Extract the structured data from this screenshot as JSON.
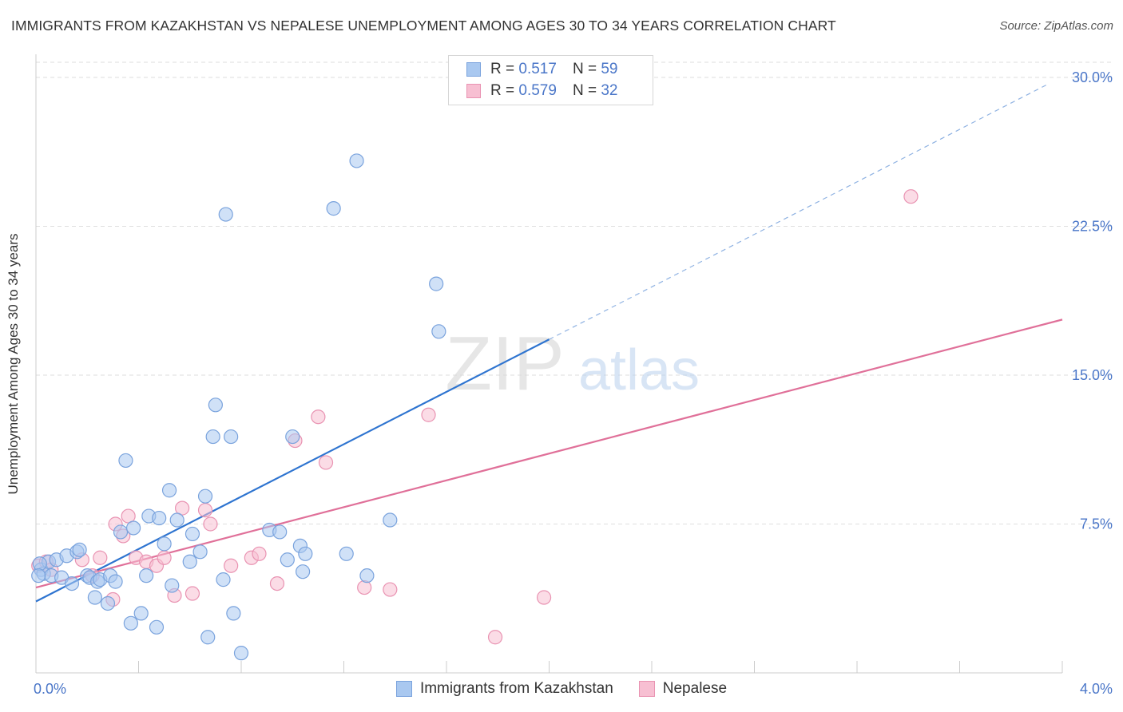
{
  "title": "IMMIGRANTS FROM KAZAKHSTAN VS NEPALESE UNEMPLOYMENT AMONG AGES 30 TO 34 YEARS CORRELATION CHART",
  "source": "Source: ZipAtlas.com",
  "watermark": {
    "zip": "ZIP",
    "atlas": "atlas"
  },
  "legend": {
    "r_label": "R =",
    "n_label": "N =",
    "rows": [
      {
        "r": "0.517",
        "n": "59",
        "color": "#a9c8f0",
        "border": "#7aa3dd"
      },
      {
        "r": "0.579",
        "n": "32",
        "color": "#f7bfd2",
        "border": "#e993b2"
      }
    ]
  },
  "chart_data": {
    "type": "scatter",
    "xlabel": "",
    "ylabel": "Unemployment Among Ages 30 to 34 years",
    "xlim": [
      0,
      4.0
    ],
    "ylim": [
      0,
      31.0
    ],
    "x_tick_labels": [
      {
        "value": 0.0,
        "label": "0.0%"
      },
      {
        "value": 4.0,
        "label": "4.0%"
      }
    ],
    "y_tick_labels": [
      {
        "value": 7.5,
        "label": "7.5%"
      },
      {
        "value": 15.0,
        "label": "15.0%"
      },
      {
        "value": 22.5,
        "label": "22.5%"
      },
      {
        "value": 30.0,
        "label": "30.0%"
      }
    ],
    "grid": "horizontal dashed",
    "legend_position": "top-center",
    "series": [
      {
        "name": "Immigrants from Kazakhstan",
        "color": "#a9c8f0",
        "stroke": "#7aa3dd",
        "line_color": "#2e74d0",
        "trend": {
          "x0": 0.0,
          "y0": 3.6,
          "x1": 2.0,
          "y1": 16.8,
          "x_ext": 3.95,
          "y_ext": 29.7
        },
        "points": [
          [
            0.02,
            5.2
          ],
          [
            0.03,
            5.0
          ],
          [
            0.05,
            5.6
          ],
          [
            0.06,
            4.9
          ],
          [
            0.08,
            5.7
          ],
          [
            0.1,
            4.8
          ],
          [
            0.12,
            5.9
          ],
          [
            0.14,
            4.5
          ],
          [
            0.16,
            6.1
          ],
          [
            0.17,
            6.2
          ],
          [
            0.2,
            4.9
          ],
          [
            0.21,
            4.8
          ],
          [
            0.23,
            3.8
          ],
          [
            0.24,
            4.6
          ],
          [
            0.25,
            4.7
          ],
          [
            0.28,
            3.5
          ],
          [
            0.29,
            4.9
          ],
          [
            0.31,
            4.6
          ],
          [
            0.33,
            7.1
          ],
          [
            0.35,
            10.7
          ],
          [
            0.37,
            2.5
          ],
          [
            0.38,
            7.3
          ],
          [
            0.41,
            3.0
          ],
          [
            0.43,
            4.9
          ],
          [
            0.44,
            7.9
          ],
          [
            0.47,
            2.3
          ],
          [
            0.48,
            7.8
          ],
          [
            0.5,
            6.5
          ],
          [
            0.52,
            9.2
          ],
          [
            0.53,
            4.4
          ],
          [
            0.55,
            7.7
          ],
          [
            0.6,
            5.6
          ],
          [
            0.61,
            7.0
          ],
          [
            0.64,
            6.1
          ],
          [
            0.66,
            8.9
          ],
          [
            0.67,
            1.8
          ],
          [
            0.69,
            11.9
          ],
          [
            0.7,
            13.5
          ],
          [
            0.73,
            4.7
          ],
          [
            0.74,
            23.1
          ],
          [
            0.76,
            11.9
          ],
          [
            0.77,
            3.0
          ],
          [
            0.8,
            1.0
          ],
          [
            0.91,
            7.2
          ],
          [
            0.95,
            7.1
          ],
          [
            0.98,
            5.7
          ],
          [
            1.0,
            11.9
          ],
          [
            1.03,
            6.4
          ],
          [
            1.04,
            5.1
          ],
          [
            1.05,
            6.0
          ],
          [
            1.16,
            23.4
          ],
          [
            1.21,
            6.0
          ],
          [
            1.25,
            25.8
          ],
          [
            1.29,
            4.9
          ],
          [
            1.38,
            7.7
          ],
          [
            1.56,
            19.6
          ],
          [
            1.57,
            17.2
          ],
          [
            0.015,
            5.5
          ],
          [
            0.01,
            4.9
          ]
        ]
      },
      {
        "name": "Nepalese",
        "color": "#f7bfd2",
        "stroke": "#e993b2",
        "line_color": "#e07099",
        "trend": {
          "x0": 0.0,
          "y0": 4.3,
          "x1": 4.0,
          "y1": 17.8
        },
        "points": [
          [
            0.01,
            5.4
          ],
          [
            0.04,
            5.6
          ],
          [
            0.06,
            5.2
          ],
          [
            0.18,
            5.7
          ],
          [
            0.22,
            4.9
          ],
          [
            0.25,
            5.8
          ],
          [
            0.3,
            3.7
          ],
          [
            0.31,
            7.5
          ],
          [
            0.36,
            7.9
          ],
          [
            0.39,
            5.8
          ],
          [
            0.43,
            5.6
          ],
          [
            0.47,
            5.4
          ],
          [
            0.5,
            5.8
          ],
          [
            0.54,
            3.9
          ],
          [
            0.57,
            8.3
          ],
          [
            0.61,
            4.0
          ],
          [
            0.66,
            8.2
          ],
          [
            0.68,
            7.5
          ],
          [
            0.76,
            5.4
          ],
          [
            0.84,
            5.8
          ],
          [
            0.87,
            6.0
          ],
          [
            0.94,
            4.5
          ],
          [
            1.01,
            11.7
          ],
          [
            1.1,
            12.9
          ],
          [
            1.13,
            10.6
          ],
          [
            1.28,
            4.3
          ],
          [
            1.38,
            4.2
          ],
          [
            1.53,
            13.0
          ],
          [
            1.79,
            1.8
          ],
          [
            1.98,
            3.8
          ],
          [
            3.41,
            24.0
          ],
          [
            0.34,
            6.9
          ]
        ]
      }
    ]
  }
}
